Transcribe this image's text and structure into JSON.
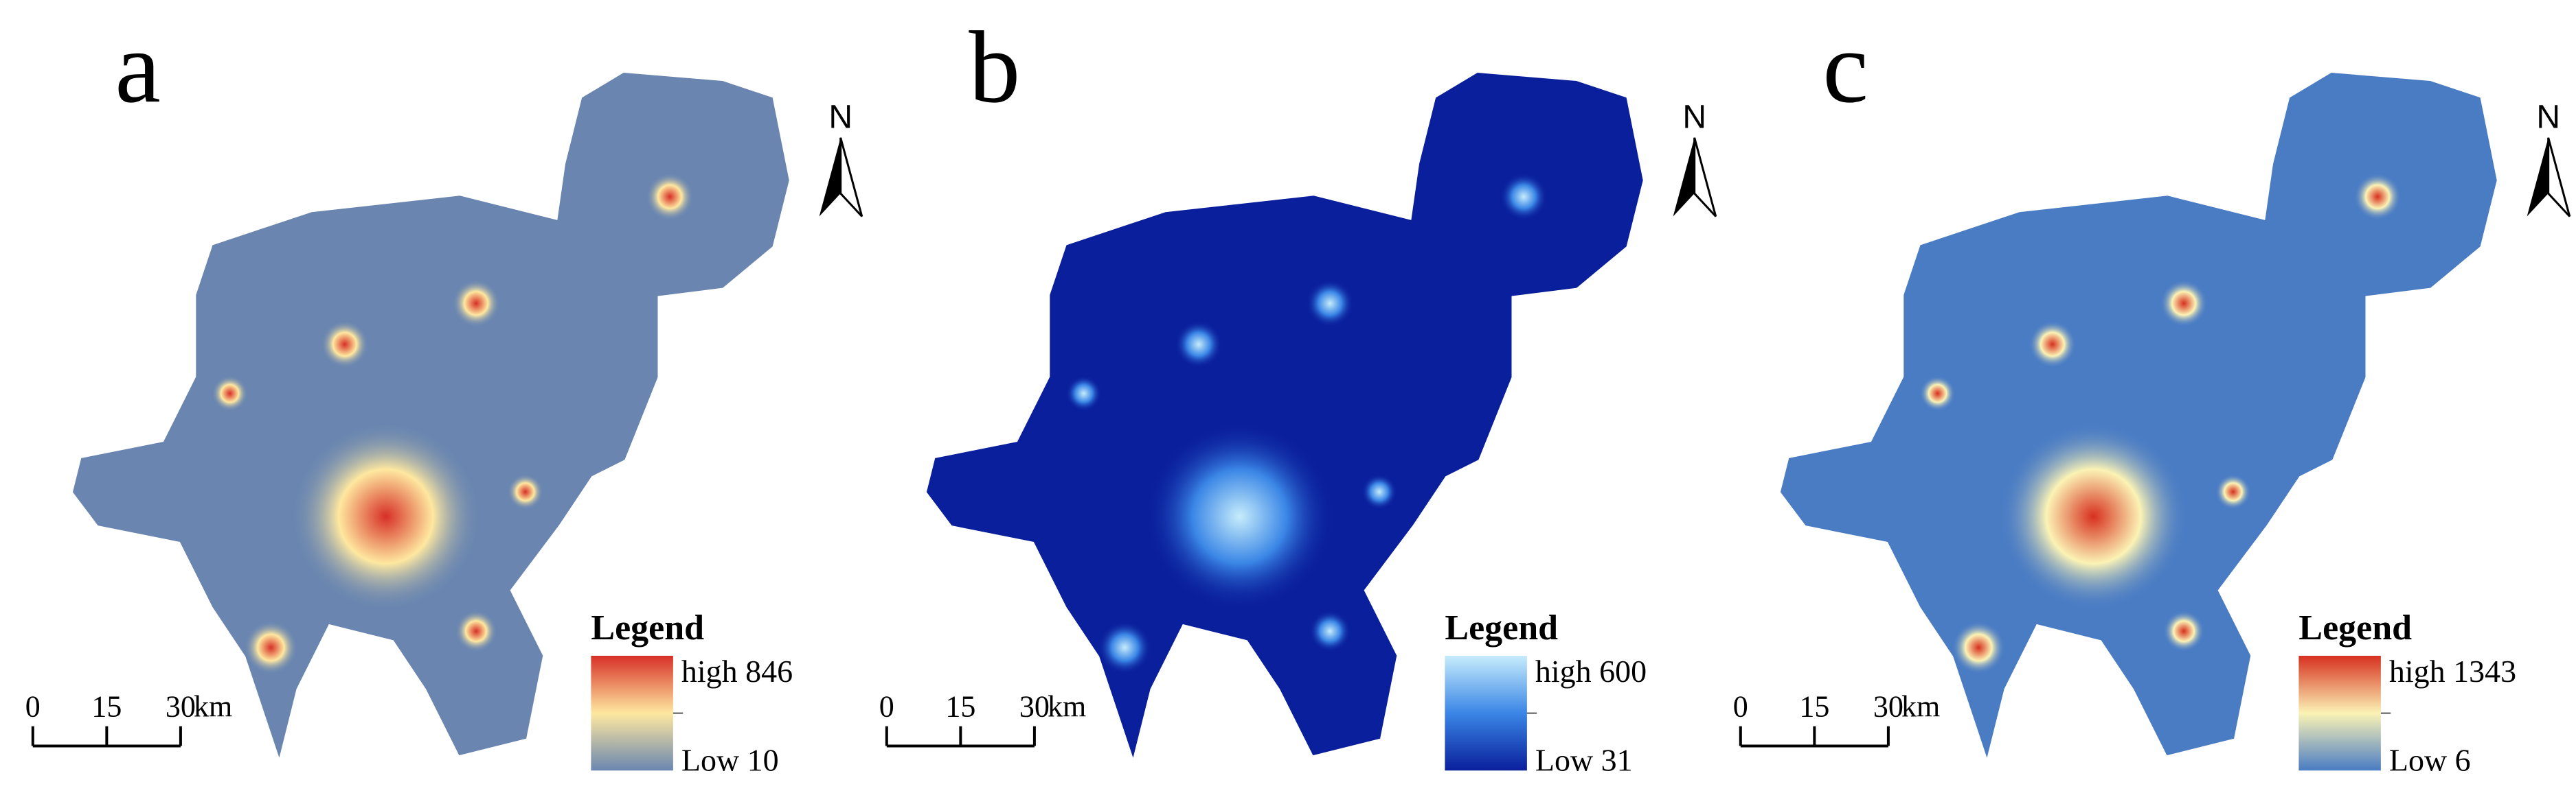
{
  "panels": [
    {
      "label": "a",
      "north": "N",
      "legend": {
        "title": "Legend",
        "high": "high 846",
        "low": "Low 10",
        "ramp": [
          "#d73027",
          "#fee8a0",
          "#6a86b0"
        ]
      },
      "scale": {
        "ticks": [
          0,
          15,
          30
        ],
        "unit": "km"
      }
    },
    {
      "label": "b",
      "north": "N",
      "legend": {
        "title": "Legend",
        "high": "high 600",
        "low": "Low 31",
        "ramp": [
          "#c6ecfb",
          "#3a86e6",
          "#0a1f9c"
        ]
      },
      "scale": {
        "ticks": [
          0,
          15,
          30
        ],
        "unit": "km"
      }
    },
    {
      "label": "c",
      "north": "N",
      "legend": {
        "title": "Legend",
        "high": "high 1343",
        "low": "Low 6",
        "ramp": [
          "#d7301f",
          "#fbf3b5",
          "#4a7cc4"
        ]
      },
      "scale": {
        "ticks": [
          0,
          15,
          30
        ],
        "unit": "km"
      }
    }
  ]
}
